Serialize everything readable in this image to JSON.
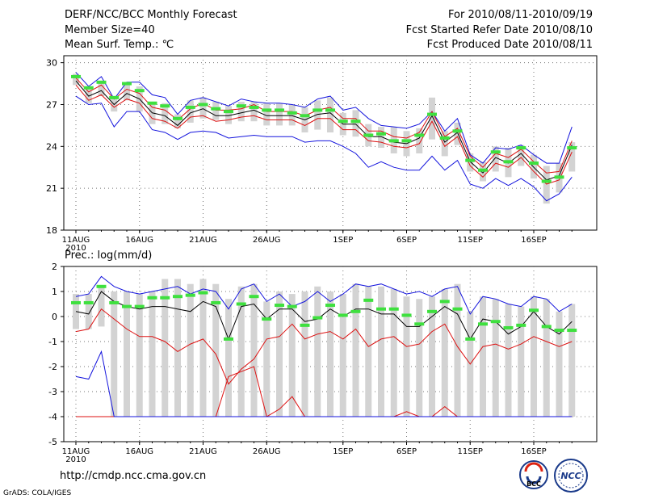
{
  "header": {
    "title": "DERF/NCC/BCC Monthly Forecast",
    "member": "Member Size=40",
    "variable": "Mean Surf. Temp.: ℃",
    "period": "For 2010/08/11-2010/09/19",
    "started": "Fcst Started Refer Date 2010/08/10",
    "produced": "Fcst Produced Date 2010/08/11"
  },
  "colors": {
    "grey_bar": "#d3d3d3",
    "green": "#3ee03e",
    "red": "#dd1111",
    "blue": "#1414dd",
    "black": "#000000"
  },
  "footer": {
    "url": "http://cmdp.ncc.cma.gov.cn",
    "grads": "GrADS: COLA/IGES",
    "logo1": "BCC",
    "logo2": "NCC"
  },
  "chart_data": [
    {
      "type": "line",
      "title": "Mean Surf. Temp.: ℃",
      "x": [
        "11AUG",
        "12AUG",
        "13AUG",
        "14AUG",
        "15AUG",
        "16AUG",
        "17AUG",
        "18AUG",
        "19AUG",
        "20AUG",
        "21AUG",
        "22AUG",
        "23AUG",
        "24AUG",
        "25AUG",
        "26AUG",
        "27AUG",
        "28AUG",
        "29AUG",
        "30AUG",
        "31AUG",
        "1SEP",
        "2SEP",
        "3SEP",
        "4SEP",
        "5SEP",
        "6SEP",
        "7SEP",
        "8SEP",
        "9SEP",
        "10SEP",
        "11SEP",
        "12SEP",
        "13SEP",
        "14SEP",
        "15SEP",
        "16SEP",
        "17SEP",
        "18SEP",
        "19SEP"
      ],
      "xticks": [
        "11AUG",
        "16AUG",
        "21AUG",
        "26AUG",
        "1SEP",
        "6SEP",
        "11SEP",
        "16SEP"
      ],
      "year_label": "2010",
      "ylim": [
        18,
        30.5
      ],
      "yticks": [
        "30",
        "27",
        "24",
        "21",
        "18"
      ],
      "series": [
        {
          "name": "ensemble_max",
          "color": "blue",
          "values": [
            29.3,
            28.3,
            29.0,
            27.4,
            28.6,
            28.6,
            27.7,
            27.5,
            26.3,
            27.3,
            27.5,
            27.2,
            26.9,
            27.4,
            27.2,
            27.1,
            27.1,
            27.0,
            26.8,
            27.4,
            27.6,
            26.6,
            26.8,
            26.0,
            25.5,
            25.4,
            25.3,
            25.6,
            26.5,
            25.1,
            26.0,
            23.4,
            22.8,
            23.9,
            23.8,
            24.1,
            23.4,
            22.8,
            22.8,
            25.4
          ]
        },
        {
          "name": "upper_red",
          "color": "red",
          "values": [
            28.9,
            27.9,
            28.4,
            27.4,
            28.1,
            27.8,
            26.8,
            26.6,
            25.9,
            26.7,
            27.1,
            26.6,
            26.6,
            26.7,
            27.0,
            26.5,
            26.5,
            26.5,
            26.2,
            26.6,
            26.8,
            26.0,
            26.0,
            25.1,
            25.1,
            24.7,
            24.6,
            25.0,
            26.5,
            24.7,
            25.3,
            23.3,
            22.5,
            23.5,
            23.2,
            23.8,
            22.9,
            22.1,
            22.2,
            24.4
          ]
        },
        {
          "name": "ensemble_mean",
          "color": "black",
          "values": [
            28.7,
            27.6,
            28.0,
            27.0,
            27.8,
            27.4,
            26.4,
            26.2,
            25.5,
            26.4,
            26.7,
            26.2,
            26.2,
            26.4,
            26.6,
            26.2,
            26.2,
            26.2,
            25.9,
            26.3,
            26.4,
            25.6,
            25.6,
            24.7,
            24.7,
            24.3,
            24.2,
            24.6,
            26.2,
            24.3,
            25.0,
            22.9,
            22.1,
            23.2,
            22.8,
            23.5,
            22.5,
            21.6,
            21.9,
            24.1
          ]
        },
        {
          "name": "lower_red",
          "color": "red",
          "values": [
            28.4,
            27.3,
            27.7,
            26.8,
            27.4,
            27.1,
            26.0,
            25.8,
            25.3,
            26.1,
            26.2,
            25.8,
            25.9,
            26.1,
            26.2,
            25.9,
            25.9,
            25.9,
            25.5,
            26.0,
            26.0,
            25.2,
            25.2,
            24.4,
            24.3,
            24.0,
            23.9,
            24.2,
            25.8,
            24.0,
            24.7,
            22.6,
            21.8,
            22.8,
            22.5,
            23.2,
            22.2,
            21.3,
            21.6,
            23.6
          ]
        },
        {
          "name": "ensemble_min",
          "color": "blue",
          "values": [
            27.6,
            27.0,
            27.1,
            25.4,
            26.5,
            26.5,
            25.2,
            25.0,
            24.5,
            25.0,
            25.1,
            25.0,
            24.6,
            24.7,
            24.8,
            24.7,
            24.7,
            24.7,
            24.3,
            24.4,
            24.4,
            24.0,
            23.5,
            22.5,
            22.9,
            22.5,
            22.3,
            22.3,
            23.3,
            22.3,
            23.0,
            21.3,
            21.0,
            21.7,
            21.2,
            21.7,
            21.1,
            20.1,
            20.6,
            21.8
          ]
        }
      ],
      "markers": {
        "name": "green",
        "values": [
          29.0,
          28.2,
          28.6,
          27.5,
          28.5,
          28.0,
          27.1,
          26.9,
          26.0,
          26.8,
          27.0,
          26.7,
          26.5,
          26.9,
          26.8,
          26.6,
          26.6,
          26.4,
          26.2,
          26.6,
          26.6,
          25.8,
          25.8,
          24.8,
          24.9,
          24.4,
          24.4,
          24.8,
          26.3,
          24.6,
          25.1,
          23.0,
          22.3,
          23.6,
          22.9,
          23.9,
          22.8,
          21.5,
          21.8,
          23.9
        ]
      },
      "boxes": {
        "name": "grey_spread",
        "low": [
          28.4,
          27.1,
          27.6,
          26.5,
          27.3,
          26.5,
          25.6,
          25.6,
          25.3,
          25.7,
          26.0,
          25.9,
          25.6,
          25.8,
          25.8,
          25.5,
          25.5,
          25.5,
          25.0,
          25.2,
          25.0,
          24.8,
          24.7,
          24.0,
          23.9,
          23.5,
          23.3,
          23.5,
          24.5,
          23.3,
          24.1,
          22.2,
          21.5,
          22.2,
          21.8,
          22.6,
          21.7,
          19.9,
          20.7,
          22.2
        ],
        "high": [
          29.2,
          28.2,
          28.6,
          27.6,
          28.5,
          28.3,
          27.1,
          27.1,
          26.3,
          27.3,
          27.5,
          27.2,
          26.9,
          27.2,
          27.2,
          27.1,
          27.1,
          27.0,
          26.8,
          27.3,
          27.5,
          26.4,
          26.6,
          25.6,
          25.4,
          25.4,
          25.1,
          25.3,
          27.5,
          25.1,
          25.7,
          23.5,
          22.9,
          24.0,
          23.9,
          24.1,
          23.4,
          22.6,
          22.8,
          24.3
        ]
      }
    },
    {
      "type": "line",
      "title": "Prec.: log(mm/d)",
      "x": [
        "11AUG",
        "12AUG",
        "13AUG",
        "14AUG",
        "15AUG",
        "16AUG",
        "17AUG",
        "18AUG",
        "19AUG",
        "20AUG",
        "21AUG",
        "22AUG",
        "23AUG",
        "24AUG",
        "25AUG",
        "26AUG",
        "27AUG",
        "28AUG",
        "29AUG",
        "30AUG",
        "31AUG",
        "1SEP",
        "2SEP",
        "3SEP",
        "4SEP",
        "5SEP",
        "6SEP",
        "7SEP",
        "8SEP",
        "9SEP",
        "10SEP",
        "11SEP",
        "12SEP",
        "13SEP",
        "14SEP",
        "15SEP",
        "16SEP",
        "17SEP",
        "18SEP",
        "19SEP"
      ],
      "xticks": [
        "11AUG",
        "16AUG",
        "21AUG",
        "26AUG",
        "1SEP",
        "6SEP",
        "11SEP",
        "16SEP"
      ],
      "year_label": "2010",
      "ylim": [
        -5,
        2
      ],
      "yticks": [
        "2",
        "1",
        "0",
        "-1",
        "-2",
        "-3",
        "-4",
        "-5"
      ],
      "series": [
        {
          "name": "ensemble_max",
          "color": "blue",
          "values": [
            0.8,
            0.9,
            1.6,
            1.2,
            1.0,
            0.9,
            1.0,
            1.1,
            1.2,
            0.9,
            1.1,
            1.0,
            0.3,
            1.1,
            1.3,
            0.6,
            0.9,
            0.4,
            0.6,
            1.0,
            0.6,
            0.9,
            1.3,
            1.2,
            1.3,
            1.1,
            0.9,
            1.0,
            0.8,
            1.1,
            1.2,
            0.1,
            0.8,
            0.7,
            0.5,
            0.4,
            0.8,
            0.7,
            0.2,
            0.5
          ]
        },
        {
          "name": "ensemble_mean",
          "color": "black",
          "values": [
            0.2,
            0.1,
            1.0,
            0.6,
            0.4,
            0.3,
            0.4,
            0.4,
            0.3,
            0.2,
            0.6,
            0.4,
            -0.9,
            0.4,
            0.5,
            -0.1,
            0.3,
            0.3,
            -0.2,
            -0.1,
            0.3,
            0.0,
            0.3,
            0.3,
            0.1,
            0.1,
            -0.4,
            -0.4,
            0.0,
            0.4,
            0.1,
            -0.9,
            -0.1,
            -0.2,
            -0.7,
            -0.4,
            0.2,
            -0.4,
            -0.7,
            -0.2
          ]
        },
        {
          "name": "lower_red",
          "color": "red",
          "values": [
            -0.6,
            -0.5,
            0.3,
            -0.1,
            -0.5,
            -0.8,
            -0.8,
            -1.0,
            -1.4,
            -1.1,
            -0.9,
            -1.5,
            -2.7,
            -2.1,
            -1.7,
            -0.9,
            -0.8,
            -0.3,
            -0.9,
            -0.7,
            -0.6,
            -0.9,
            -0.5,
            -1.2,
            -0.9,
            -0.8,
            -1.2,
            -1.1,
            -0.6,
            -0.3,
            -1.2,
            -1.9,
            -1.2,
            -1.1,
            -1.3,
            -1.1,
            -0.8,
            -1.0,
            -1.2,
            -1.0
          ]
        },
        {
          "name": "lowest_red",
          "color": "red",
          "values": [
            -4.0,
            -4.0,
            -4.0,
            -4.0,
            -4.0,
            -4.0,
            -4.0,
            -4.0,
            -4.0,
            -4.0,
            -4.0,
            -4.0,
            -2.4,
            -2.2,
            -2.0,
            -4.0,
            -3.7,
            -3.2,
            -4.0,
            -4.0,
            -4.0,
            -4.0,
            -4.0,
            -4.0,
            -4.0,
            -4.0,
            -3.8,
            -4.0,
            -4.0,
            -3.6,
            -4.0,
            -4.0,
            -4.0,
            -4.0,
            -4.0,
            -4.0,
            -4.0,
            -4.0,
            -4.0,
            -4.0
          ]
        },
        {
          "name": "ensemble_min",
          "color": "blue",
          "values": [
            -2.4,
            -2.5,
            -1.4,
            -4.0,
            -4.0,
            -4.0,
            -4.0,
            -4.0,
            -4.0,
            -4.0,
            -4.0,
            -4.0,
            -4.0,
            -4.0,
            -4.0,
            -4.0,
            -4.0,
            -4.0,
            -4.0,
            -4.0,
            -4.0,
            -4.0,
            -4.0,
            -4.0,
            -4.0,
            -4.0,
            -4.0,
            -4.0,
            -4.0,
            -4.0,
            -4.0,
            -4.0,
            -4.0,
            -4.0,
            -4.0,
            -4.0,
            -4.0,
            -4.0,
            -4.0,
            -4.0
          ]
        }
      ],
      "markers": {
        "name": "green",
        "values": [
          0.55,
          0.55,
          1.2,
          0.55,
          0.4,
          0.4,
          0.75,
          0.75,
          0.8,
          0.85,
          0.95,
          0.55,
          -0.9,
          0.5,
          0.8,
          -0.1,
          0.45,
          0.4,
          -0.35,
          -0.05,
          0.45,
          0.05,
          0.2,
          0.65,
          0.3,
          0.3,
          0.05,
          -0.3,
          0.2,
          0.6,
          0.3,
          -0.9,
          -0.3,
          -0.2,
          -0.45,
          -0.35,
          0.25,
          -0.4,
          -0.55,
          -0.55
        ]
      },
      "boxes": {
        "name": "grey_spread",
        "low": [
          -0.5,
          -0.5,
          -0.4,
          -4.0,
          -4.0,
          -4.0,
          -4.0,
          -4.0,
          -4.0,
          -4.0,
          -4.0,
          -4.0,
          -4.0,
          -4.0,
          -4.0,
          -4.0,
          -4.0,
          -4.0,
          -4.0,
          -4.0,
          -4.0,
          -4.0,
          -4.0,
          -4.0,
          -4.0,
          -4.0,
          -4.0,
          -4.0,
          -4.0,
          -4.0,
          -4.0,
          -4.0,
          -4.0,
          -4.0,
          -4.0,
          -4.0,
          -4.0,
          -4.0,
          -4.0,
          -4.0
        ],
        "high": [
          0.9,
          0.9,
          1.2,
          1.0,
          1.0,
          0.9,
          1.0,
          1.5,
          1.5,
          1.3,
          1.5,
          1.3,
          0.7,
          1.2,
          1.3,
          0.6,
          1.0,
          0.9,
          1.0,
          1.2,
          1.0,
          0.9,
          1.3,
          1.2,
          1.2,
          1.1,
          0.8,
          0.7,
          0.8,
          1.1,
          1.3,
          0.2,
          0.8,
          0.7,
          0.5,
          0.4,
          0.8,
          0.7,
          0.2,
          0.5
        ]
      }
    }
  ]
}
